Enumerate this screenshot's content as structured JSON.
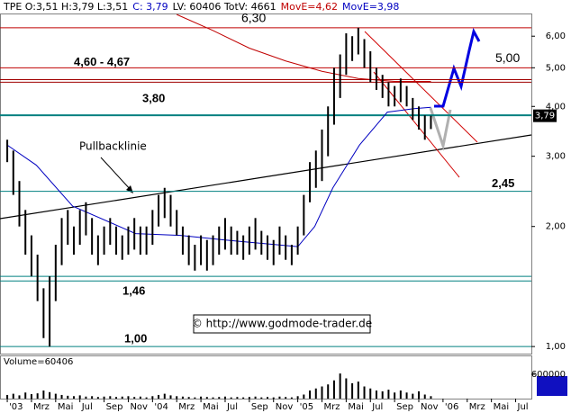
{
  "chart_data": {
    "type": "hilo",
    "header": [
      {
        "text": "TPE O:3,51 H:3,79 L:3,51",
        "color": "#000000"
      },
      {
        "text": "C: 3,79",
        "color": "#0000c0"
      },
      {
        "text": "LV: 60406 TotV: 4661",
        "color": "#000000"
      },
      {
        "text": "MovE=4,62",
        "color": "#c00000"
      },
      {
        "text": "MovE=3,98",
        "color": "#0000c0"
      }
    ],
    "log_scale": true,
    "color": "#000000",
    "xlim": [
      -0.6,
      43.3
    ],
    "ylim": [
      0.96,
      6.84
    ],
    "yticks": [
      {
        "value": 1,
        "label": "1,00"
      },
      {
        "value": 2,
        "label": "2,00"
      },
      {
        "value": 3,
        "label": "3,00"
      },
      {
        "value": 4,
        "label": "4,00"
      },
      {
        "value": 5,
        "label": "5,00"
      },
      {
        "value": 6,
        "label": "6,00"
      }
    ],
    "xticks": [
      {
        "value": 0,
        "label": "'03"
      },
      {
        "value": 2,
        "label": "Mrz"
      },
      {
        "value": 4,
        "label": "Mai"
      },
      {
        "value": 6,
        "label": "Jul"
      },
      {
        "value": 8,
        "label": "Sep"
      },
      {
        "value": 10,
        "label": "Nov"
      },
      {
        "value": 12,
        "label": "'04"
      },
      {
        "value": 14,
        "label": "Mrz"
      },
      {
        "value": 16,
        "label": "Mai"
      },
      {
        "value": 18,
        "label": "Jul"
      },
      {
        "value": 20,
        "label": "Sep"
      },
      {
        "value": 22,
        "label": "Nov"
      },
      {
        "value": 24,
        "label": "'05"
      },
      {
        "value": 26,
        "label": "Mrz"
      },
      {
        "value": 28,
        "label": "Mai"
      },
      {
        "value": 30,
        "label": "Jul"
      },
      {
        "value": 32,
        "label": "Sep"
      },
      {
        "value": 34,
        "label": "Nov"
      },
      {
        "value": 36,
        "label": "'06"
      },
      {
        "value": 38,
        "label": "Mrz"
      },
      {
        "value": 40,
        "label": "Mai"
      },
      {
        "value": 42,
        "label": "Jul"
      }
    ],
    "x": [
      0,
      0.5,
      1,
      1.5,
      2,
      2.5,
      3,
      3.5,
      4,
      4.5,
      5,
      5.5,
      6,
      6.5,
      7,
      7.5,
      8,
      8.5,
      9,
      9.5,
      10,
      10.5,
      11,
      11.5,
      12,
      12.5,
      13,
      13.5,
      14,
      14.5,
      15,
      15.5,
      16,
      16.5,
      17,
      17.5,
      18,
      18.5,
      19,
      19.5,
      20,
      20.5,
      21,
      21.5,
      22,
      22.5,
      23,
      23.5,
      24,
      24.5,
      25,
      25.5,
      26,
      26.5,
      27,
      27.5,
      28,
      28.5,
      29,
      29.5,
      30,
      30.5,
      31,
      31.5,
      32,
      32.5,
      33,
      33.5,
      34,
      34.5,
      35
    ],
    "high": [
      3.3,
      3.1,
      2.6,
      2.2,
      1.9,
      1.7,
      1.4,
      1.5,
      1.8,
      2.1,
      2.2,
      2.0,
      2.2,
      2.3,
      2.1,
      1.9,
      2.0,
      2.1,
      2.0,
      1.9,
      2.0,
      2.1,
      2.0,
      2.0,
      2.2,
      2.4,
      2.5,
      2.4,
      2.2,
      2.0,
      1.9,
      1.8,
      1.9,
      1.85,
      1.9,
      2.0,
      2.1,
      2.0,
      1.95,
      1.9,
      2.0,
      2.1,
      1.95,
      1.9,
      1.85,
      2.0,
      1.9,
      1.8,
      2.0,
      2.4,
      2.9,
      3.1,
      3.5,
      4.0,
      5.0,
      5.4,
      6.1,
      6.0,
      6.3,
      5.9,
      5.5,
      5.0,
      4.8,
      4.6,
      4.5,
      4.7,
      4.5,
      4.2,
      4.0,
      3.8,
      3.79
    ],
    "low": [
      2.9,
      2.4,
      2.0,
      1.7,
      1.5,
      1.3,
      1.05,
      1.0,
      1.3,
      1.6,
      1.8,
      1.7,
      1.8,
      1.9,
      1.7,
      1.6,
      1.7,
      1.8,
      1.7,
      1.65,
      1.7,
      1.75,
      1.7,
      1.7,
      1.8,
      2.0,
      2.1,
      2.0,
      1.9,
      1.7,
      1.6,
      1.55,
      1.6,
      1.55,
      1.6,
      1.7,
      1.75,
      1.7,
      1.7,
      1.65,
      1.7,
      1.75,
      1.7,
      1.65,
      1.6,
      1.7,
      1.65,
      1.6,
      1.7,
      1.9,
      2.3,
      2.5,
      2.6,
      3.0,
      3.6,
      4.2,
      4.8,
      5.2,
      5.4,
      5.0,
      4.6,
      4.4,
      4.2,
      4.0,
      4.0,
      4.1,
      4.0,
      3.7,
      3.5,
      3.3,
      3.51
    ],
    "moving_averages": [
      {
        "color": "#c00000",
        "x": [
          14,
          17,
          20,
          23,
          26,
          29,
          32,
          35
        ],
        "values": [
          6.8,
          6.2,
          5.6,
          5.2,
          4.9,
          4.7,
          4.62,
          4.62
        ]
      },
      {
        "color": "#0000c0",
        "x": [
          0,
          2.4,
          5.4,
          10.6,
          14.3,
          18,
          24,
          25.4,
          26.9,
          29.1,
          31.4,
          33.6,
          35
        ],
        "values": [
          3.2,
          2.85,
          2.25,
          1.92,
          1.9,
          1.85,
          1.78,
          2.0,
          2.5,
          3.2,
          3.87,
          3.95,
          3.98
        ]
      }
    ],
    "levels": [
      {
        "values": [
          6.3
        ],
        "label": "6,30",
        "color": "#c00000"
      },
      {
        "values": [
          4.6,
          4.67
        ],
        "label": "4,60 - 4,67",
        "color": "#a00000"
      },
      {
        "values": [
          5.0
        ],
        "label": "5,00",
        "color": "#c00000"
      },
      {
        "values": [
          3.8
        ],
        "label": "3,80",
        "color": "#008080"
      },
      {
        "values": [
          2.45
        ],
        "label": "2,45",
        "color": "#008080"
      },
      {
        "values": [
          1.46,
          1.5
        ],
        "label": "1,46",
        "color": "#008080"
      },
      {
        "values": [
          1.0
        ],
        "label": "1,00",
        "color": "#008080"
      }
    ],
    "last": {
      "value": 3.79,
      "label": "3,79"
    },
    "annotation": "Pullbacklinie",
    "copyright": "© http://www.godmode-trader.de",
    "volume": {
      "title": "Volume=60406",
      "ylim": [
        0,
        1066000
      ],
      "yticks": [
        600000
      ],
      "values": [
        90000,
        120000,
        80000,
        150000,
        110000,
        130000,
        200000,
        160000,
        120000,
        90000,
        70000,
        60000,
        80000,
        50000,
        60000,
        40000,
        50000,
        60000,
        40000,
        50000,
        60000,
        40000,
        50000,
        30000,
        60000,
        90000,
        120000,
        80000,
        60000,
        50000,
        40000,
        30000,
        50000,
        40000,
        30000,
        40000,
        50000,
        30000,
        40000,
        30000,
        40000,
        50000,
        30000,
        40000,
        30000,
        50000,
        40000,
        30000,
        60000,
        100000,
        200000,
        250000,
        300000,
        350000,
        450000,
        620000,
        500000,
        380000,
        420000,
        300000,
        250000,
        200000,
        180000,
        220000,
        150000,
        200000,
        150000,
        120000,
        180000,
        100000,
        60406
      ]
    }
  }
}
